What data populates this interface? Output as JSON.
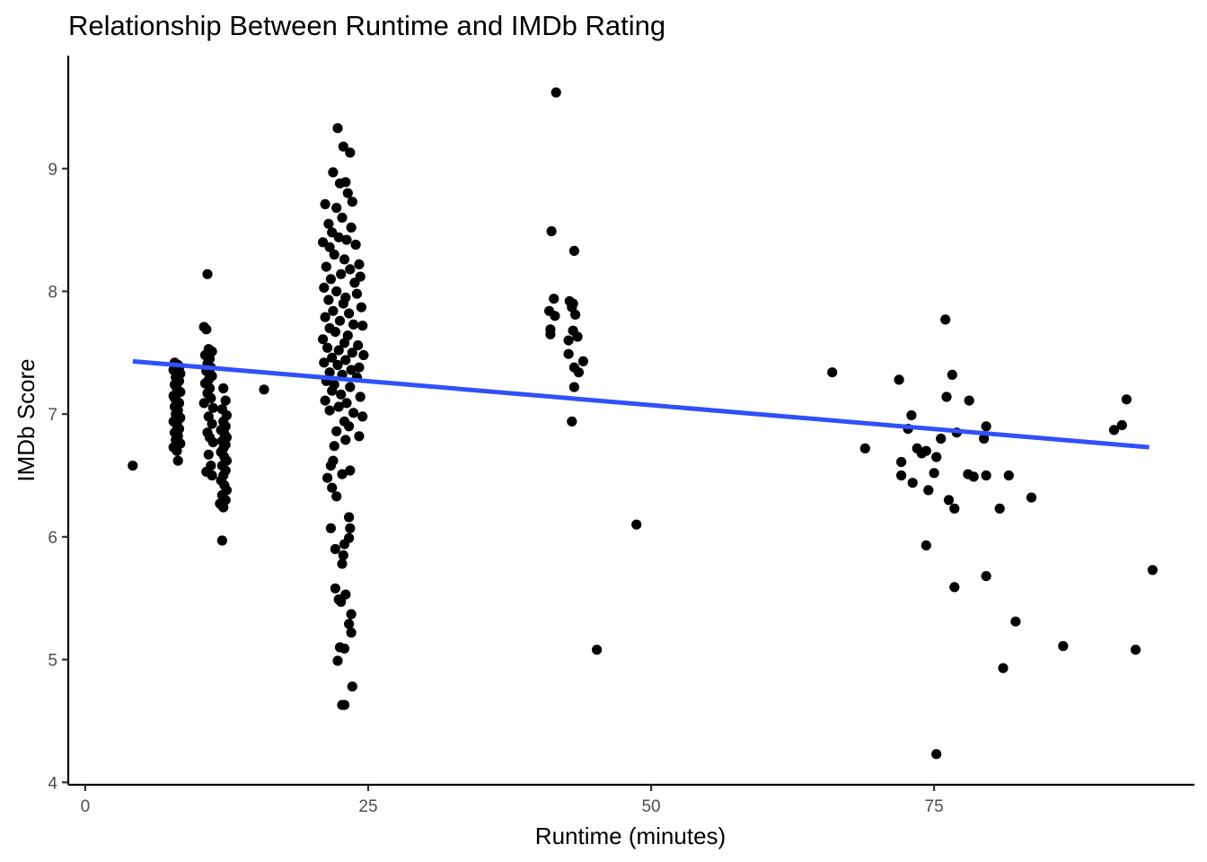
{
  "chart_data": {
    "type": "scatter",
    "title": "Relationship Between Runtime and IMDb Rating",
    "xlabel": "Runtime (minutes)",
    "ylabel": "IMDb Score",
    "xlim": [
      -1.5,
      98
    ],
    "ylim": [
      3.98,
      9.92
    ],
    "xticks": [
      0,
      25,
      50,
      75
    ],
    "yticks": [
      4,
      5,
      6,
      7,
      8,
      9
    ],
    "grid": false,
    "legend": "none",
    "point_color": "#000000",
    "trend_color": "#3050f8",
    "trendline": {
      "type": "linear",
      "x": [
        4.2,
        94.0
      ],
      "y": [
        7.43,
        6.73
      ]
    },
    "series": [
      {
        "points": [
          [
            4.2,
            6.58
          ],
          [
            15.8,
            7.2
          ],
          [
            7.9,
            7.42
          ],
          [
            8.2,
            7.4
          ],
          [
            7.8,
            7.36
          ],
          [
            8.4,
            7.33
          ],
          [
            8.0,
            7.3
          ],
          [
            8.3,
            7.27
          ],
          [
            7.9,
            7.24
          ],
          [
            8.1,
            7.21
          ],
          [
            8.4,
            7.18
          ],
          [
            7.8,
            7.15
          ],
          [
            8.0,
            7.12
          ],
          [
            8.3,
            7.09
          ],
          [
            7.9,
            7.06
          ],
          [
            8.2,
            7.03
          ],
          [
            8.0,
            7.0
          ],
          [
            8.4,
            6.97
          ],
          [
            7.8,
            6.94
          ],
          [
            8.1,
            6.91
          ],
          [
            8.3,
            6.88
          ],
          [
            7.9,
            6.85
          ],
          [
            8.2,
            6.82
          ],
          [
            8.0,
            6.79
          ],
          [
            8.4,
            6.76
          ],
          [
            7.8,
            6.73
          ],
          [
            8.1,
            6.7
          ],
          [
            8.2,
            6.62
          ],
          [
            8.3,
            7.38
          ],
          [
            7.9,
            7.13
          ],
          [
            8.2,
            6.95
          ],
          [
            10.8,
            8.14
          ],
          [
            10.5,
            7.71
          ],
          [
            10.7,
            7.69
          ],
          [
            10.9,
            7.53
          ],
          [
            11.2,
            7.51
          ],
          [
            10.6,
            7.48
          ],
          [
            11.0,
            7.45
          ],
          [
            10.8,
            7.41
          ],
          [
            11.1,
            7.38
          ],
          [
            10.7,
            7.35
          ],
          [
            11.2,
            7.31
          ],
          [
            10.9,
            7.28
          ],
          [
            10.6,
            7.25
          ],
          [
            11.0,
            7.21
          ],
          [
            10.8,
            7.17
          ],
          [
            11.1,
            7.13
          ],
          [
            10.5,
            7.09
          ],
          [
            11.3,
            7.05
          ],
          [
            10.9,
            6.98
          ],
          [
            11.2,
            6.92
          ],
          [
            10.8,
            6.85
          ],
          [
            11.0,
            6.81
          ],
          [
            11.3,
            6.77
          ],
          [
            10.9,
            6.67
          ],
          [
            11.1,
            6.58
          ],
          [
            10.7,
            6.53
          ],
          [
            11.2,
            6.5
          ],
          [
            12.2,
            7.21
          ],
          [
            12.4,
            7.11
          ],
          [
            12.1,
            7.04
          ],
          [
            12.5,
            6.99
          ],
          [
            12.2,
            6.94
          ],
          [
            12.4,
            6.9
          ],
          [
            12.0,
            6.87
          ],
          [
            12.3,
            6.84
          ],
          [
            12.5,
            6.81
          ],
          [
            12.1,
            6.78
          ],
          [
            12.4,
            6.75
          ],
          [
            12.2,
            6.72
          ],
          [
            12.0,
            6.69
          ],
          [
            12.3,
            6.65
          ],
          [
            12.5,
            6.62
          ],
          [
            12.1,
            6.58
          ],
          [
            12.4,
            6.54
          ],
          [
            12.2,
            6.5
          ],
          [
            12.0,
            6.46
          ],
          [
            12.3,
            6.42
          ],
          [
            12.5,
            6.38
          ],
          [
            12.1,
            6.34
          ],
          [
            12.4,
            6.3
          ],
          [
            11.9,
            6.27
          ],
          [
            12.2,
            6.24
          ],
          [
            12.1,
            5.97
          ],
          [
            22.3,
            9.33
          ],
          [
            22.8,
            9.18
          ],
          [
            23.4,
            9.13
          ],
          [
            21.9,
            8.97
          ],
          [
            22.5,
            8.88
          ],
          [
            23.0,
            8.89
          ],
          [
            21.2,
            8.71
          ],
          [
            23.2,
            8.8
          ],
          [
            23.6,
            8.73
          ],
          [
            22.2,
            8.68
          ],
          [
            21.5,
            8.55
          ],
          [
            22.7,
            8.6
          ],
          [
            23.5,
            8.52
          ],
          [
            21.8,
            8.48
          ],
          [
            22.4,
            8.44
          ],
          [
            21.0,
            8.4
          ],
          [
            23.1,
            8.42
          ],
          [
            23.9,
            8.38
          ],
          [
            21.6,
            8.36
          ],
          [
            22.0,
            8.3
          ],
          [
            24.2,
            8.22
          ],
          [
            22.9,
            8.26
          ],
          [
            21.3,
            8.2
          ],
          [
            23.4,
            8.18
          ],
          [
            24.3,
            8.12
          ],
          [
            21.7,
            8.1
          ],
          [
            22.6,
            8.14
          ],
          [
            23.8,
            8.07
          ],
          [
            21.1,
            8.03
          ],
          [
            22.2,
            8.0
          ],
          [
            24.0,
            7.98
          ],
          [
            23.0,
            7.95
          ],
          [
            21.5,
            7.93
          ],
          [
            22.8,
            7.9
          ],
          [
            24.4,
            7.87
          ],
          [
            21.9,
            7.84
          ],
          [
            23.3,
            7.82
          ],
          [
            21.2,
            7.79
          ],
          [
            22.5,
            7.76
          ],
          [
            23.7,
            7.73
          ],
          [
            24.5,
            7.72
          ],
          [
            21.6,
            7.7
          ],
          [
            22.1,
            7.67
          ],
          [
            23.2,
            7.64
          ],
          [
            21.0,
            7.61
          ],
          [
            22.9,
            7.58
          ],
          [
            24.1,
            7.56
          ],
          [
            21.4,
            7.54
          ],
          [
            22.4,
            7.52
          ],
          [
            23.6,
            7.5
          ],
          [
            24.6,
            7.48
          ],
          [
            21.8,
            7.46
          ],
          [
            23.0,
            7.44
          ],
          [
            21.1,
            7.42
          ],
          [
            22.3,
            7.4
          ],
          [
            24.2,
            7.38
          ],
          [
            23.5,
            7.36
          ],
          [
            21.6,
            7.34
          ],
          [
            22.7,
            7.32
          ],
          [
            24.0,
            7.3
          ],
          [
            21.3,
            7.27
          ],
          [
            22.0,
            7.24
          ],
          [
            23.4,
            7.22
          ],
          [
            21.8,
            7.19
          ],
          [
            22.6,
            7.16
          ],
          [
            24.3,
            7.14
          ],
          [
            21.2,
            7.11
          ],
          [
            23.1,
            7.09
          ],
          [
            22.4,
            7.06
          ],
          [
            21.6,
            7.03
          ],
          [
            23.7,
            7.01
          ],
          [
            24.5,
            6.98
          ],
          [
            22.9,
            6.94
          ],
          [
            23.3,
            6.9
          ],
          [
            22.2,
            6.86
          ],
          [
            24.2,
            6.82
          ],
          [
            23.0,
            6.79
          ],
          [
            22.0,
            6.74
          ],
          [
            21.9,
            6.62
          ],
          [
            21.7,
            6.58
          ],
          [
            23.4,
            6.54
          ],
          [
            22.7,
            6.51
          ],
          [
            21.4,
            6.48
          ],
          [
            21.8,
            6.4
          ],
          [
            22.2,
            6.33
          ],
          [
            23.3,
            6.16
          ],
          [
            23.4,
            6.07
          ],
          [
            21.7,
            6.07
          ],
          [
            23.3,
            5.99
          ],
          [
            22.9,
            5.94
          ],
          [
            22.1,
            5.9
          ],
          [
            22.8,
            5.85
          ],
          [
            22.7,
            5.78
          ],
          [
            22.1,
            5.58
          ],
          [
            23.0,
            5.53
          ],
          [
            22.4,
            5.49
          ],
          [
            22.6,
            5.47
          ],
          [
            23.5,
            5.37
          ],
          [
            23.3,
            5.29
          ],
          [
            23.5,
            5.22
          ],
          [
            22.5,
            5.1
          ],
          [
            22.9,
            5.09
          ],
          [
            22.3,
            4.99
          ],
          [
            23.6,
            4.78
          ],
          [
            22.7,
            4.63
          ],
          [
            22.9,
            4.63
          ],
          [
            41.6,
            9.62
          ],
          [
            41.2,
            8.49
          ],
          [
            43.2,
            8.33
          ],
          [
            41.4,
            7.94
          ],
          [
            42.8,
            7.92
          ],
          [
            43.1,
            7.9
          ],
          [
            43.0,
            7.87
          ],
          [
            41.0,
            7.84
          ],
          [
            41.5,
            7.8
          ],
          [
            43.3,
            7.81
          ],
          [
            41.1,
            7.69
          ],
          [
            43.1,
            7.68
          ],
          [
            41.1,
            7.65
          ],
          [
            43.5,
            7.63
          ],
          [
            42.7,
            7.6
          ],
          [
            42.7,
            7.49
          ],
          [
            44.0,
            7.43
          ],
          [
            43.2,
            7.38
          ],
          [
            43.6,
            7.34
          ],
          [
            43.2,
            7.22
          ],
          [
            43.0,
            6.94
          ],
          [
            48.7,
            6.1
          ],
          [
            45.2,
            5.08
          ],
          [
            66.0,
            7.34
          ],
          [
            68.9,
            6.72
          ],
          [
            71.9,
            7.28
          ],
          [
            72.1,
            6.61
          ],
          [
            72.1,
            6.5
          ],
          [
            73.0,
            6.99
          ],
          [
            72.7,
            6.88
          ],
          [
            73.5,
            6.72
          ],
          [
            73.9,
            6.68
          ],
          [
            74.3,
            6.7
          ],
          [
            73.1,
            6.44
          ],
          [
            74.5,
            6.38
          ],
          [
            75.0,
            6.52
          ],
          [
            75.2,
            6.65
          ],
          [
            75.6,
            6.8
          ],
          [
            76.0,
            7.77
          ],
          [
            76.1,
            7.14
          ],
          [
            76.6,
            7.32
          ],
          [
            77.0,
            6.85
          ],
          [
            78.1,
            7.11
          ],
          [
            79.6,
            6.9
          ],
          [
            79.4,
            6.8
          ],
          [
            78.0,
            6.51
          ],
          [
            78.5,
            6.49
          ],
          [
            79.6,
            6.5
          ],
          [
            81.6,
            6.5
          ],
          [
            76.3,
            6.3
          ],
          [
            76.8,
            6.23
          ],
          [
            80.8,
            6.23
          ],
          [
            83.6,
            6.32
          ],
          [
            74.3,
            5.93
          ],
          [
            79.6,
            5.68
          ],
          [
            76.8,
            5.59
          ],
          [
            82.2,
            5.31
          ],
          [
            81.1,
            4.93
          ],
          [
            86.4,
            5.11
          ],
          [
            75.2,
            4.23
          ],
          [
            90.9,
            6.87
          ],
          [
            91.6,
            6.91
          ],
          [
            92.0,
            7.12
          ],
          [
            92.8,
            5.08
          ],
          [
            94.3,
            5.73
          ]
        ]
      }
    ]
  }
}
